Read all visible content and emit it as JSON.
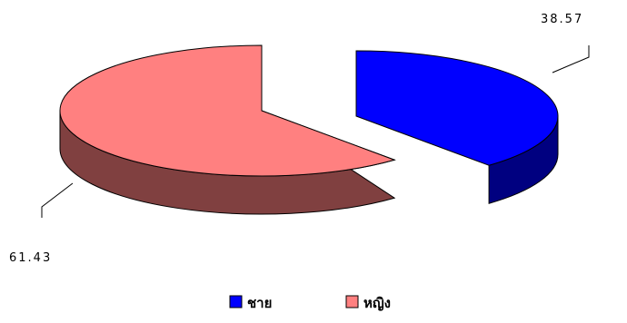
{
  "chart_data": {
    "type": "pie",
    "style": "3d-exploded",
    "categories": [
      "ชาย",
      "หญิง"
    ],
    "values": [
      38.57,
      61.43
    ],
    "data_labels": [
      "38.57",
      "61.43"
    ],
    "colors": {
      "ชาย": {
        "top": "#0000ff",
        "side": "#000080"
      },
      "หญิง": {
        "top": "#ff8080",
        "side": "#804040"
      }
    },
    "legend_position": "bottom",
    "title": ""
  }
}
